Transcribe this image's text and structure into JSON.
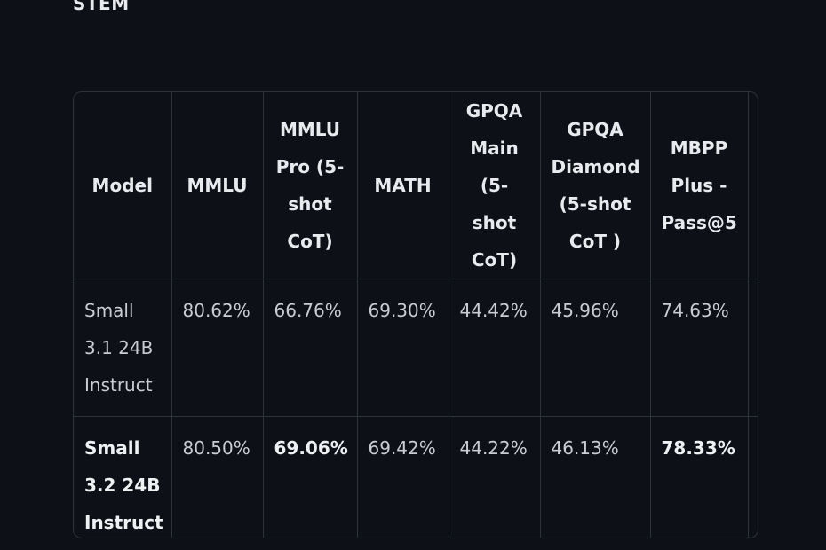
{
  "section": {
    "heading": "STEM"
  },
  "table": {
    "headers": [
      [
        "Model"
      ],
      [
        "MMLU"
      ],
      [
        "MMLU",
        "Pro (5-",
        "shot",
        "CoT)"
      ],
      [
        "MATH"
      ],
      [
        "GPQA",
        "Main",
        "(5-shot",
        "CoT)"
      ],
      [
        "GPQA",
        "Diamond",
        "(5-shot",
        "CoT )"
      ],
      [
        "MBPP",
        "Plus -",
        "Pass@5"
      ]
    ],
    "rows": [
      {
        "model": [
          "Small",
          "3.1 24B",
          "Instruct"
        ],
        "values": [
          "80.62%",
          "66.76%",
          "69.30%",
          "44.42%",
          "45.96%",
          "74.63%"
        ]
      },
      {
        "model": [
          "Small",
          "3.2 24B",
          "Instruct"
        ],
        "values": [
          "80.50%",
          "69.06%",
          "69.42%",
          "44.22%",
          "46.13%",
          "78.33%"
        ]
      }
    ]
  }
}
